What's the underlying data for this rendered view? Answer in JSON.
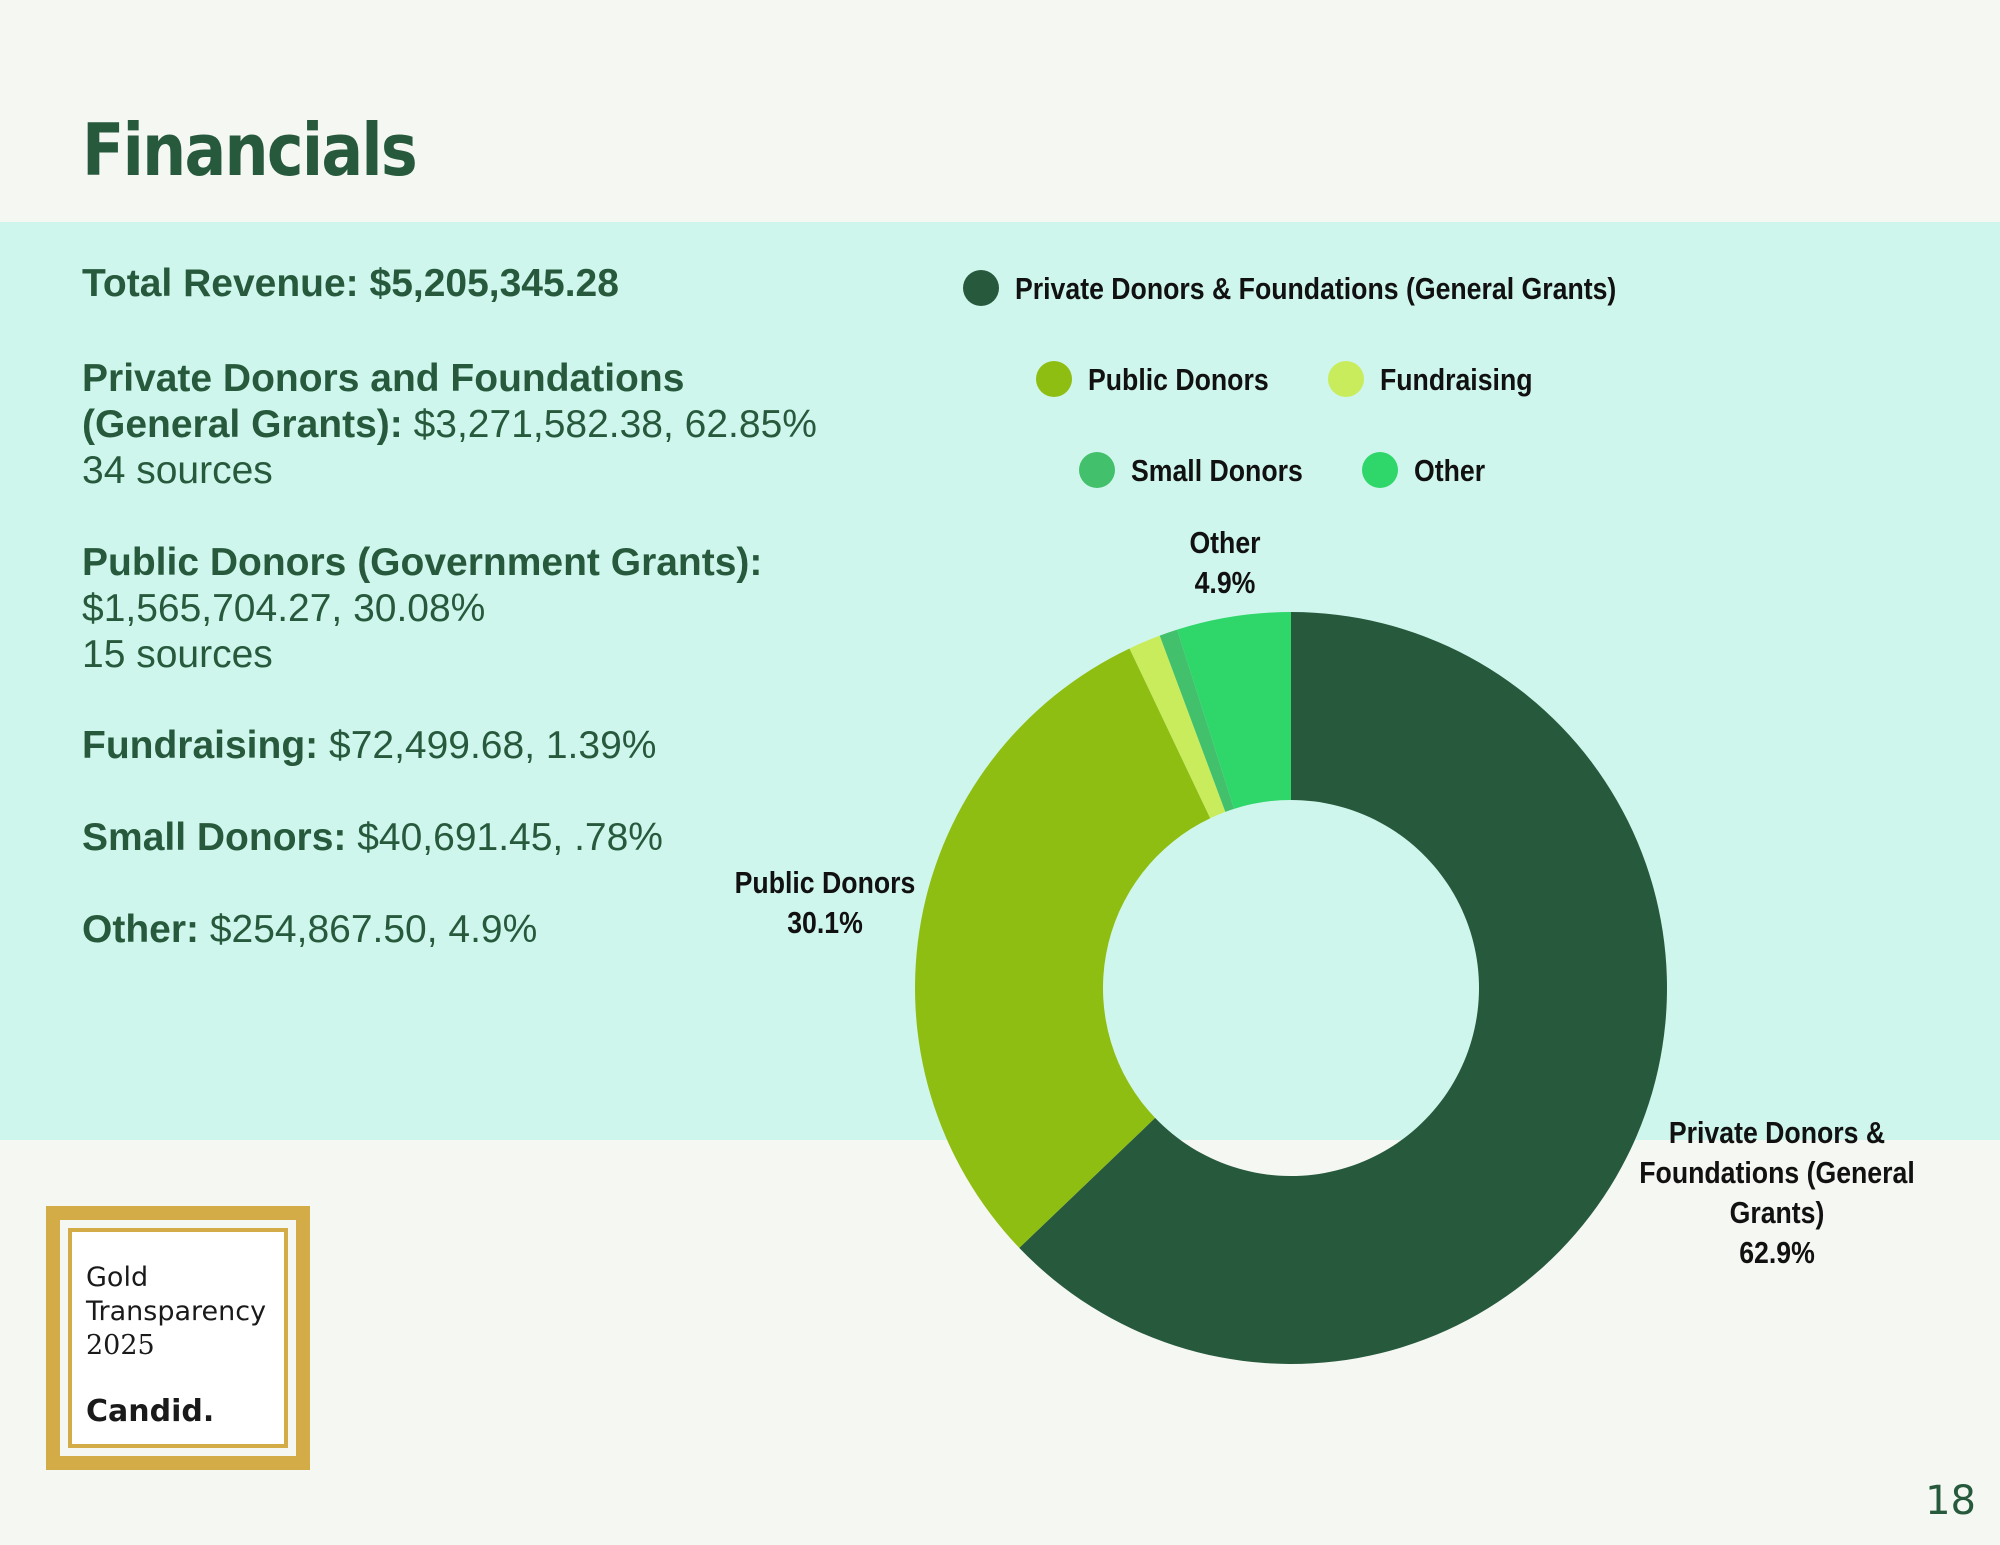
{
  "title": "Financials",
  "summary": {
    "label": "Total Revenue:",
    "value": "$5,205,345.28"
  },
  "breakdown": [
    {
      "label": "Private Donors and Foundations",
      "label2": "(General Grants):",
      "value": "$3,271,582.38, 62.85%",
      "sources": "34 sources"
    },
    {
      "label": "Public Donors (Government Grants):",
      "value": "$1,565,704.27, 30.08%",
      "sources": "15 sources"
    },
    {
      "label": "Fundraising:",
      "value": "$72,499.68, 1.39%"
    },
    {
      "label": "Small Donors:",
      "value": "$40,691.45, .78%"
    },
    {
      "label": "Other:",
      "value": "$254,867.50, 4.9%"
    }
  ],
  "chart_data": {
    "type": "pie",
    "style": "donut",
    "series": [
      {
        "name": "Private Donors & Foundations (General Grants)",
        "value": 62.9,
        "color": "#275a3d",
        "label_lines": [
          "Private Donors &",
          "Foundations (General",
          "Grants)"
        ],
        "label_value": "62.9%"
      },
      {
        "name": "Public Donors",
        "value": 30.1,
        "color": "#8fbe12",
        "label_lines": [
          "Public Donors"
        ],
        "label_value": "30.1%"
      },
      {
        "name": "Fundraising",
        "value": 1.39,
        "color": "#c9ec5c",
        "label_lines": [],
        "label_value": ""
      },
      {
        "name": "Small Donors",
        "value": 0.78,
        "color": "#43c06b",
        "label_lines": [],
        "label_value": ""
      },
      {
        "name": "Other",
        "value": 4.9,
        "color": "#2fd66a",
        "label_lines": [
          "Other"
        ],
        "label_value": "4.9%"
      }
    ],
    "legend_position": "top"
  },
  "badge": {
    "line1": "Gold",
    "line2": "Transparency",
    "year": "2025",
    "brand": "Candid."
  },
  "page_number": "18"
}
